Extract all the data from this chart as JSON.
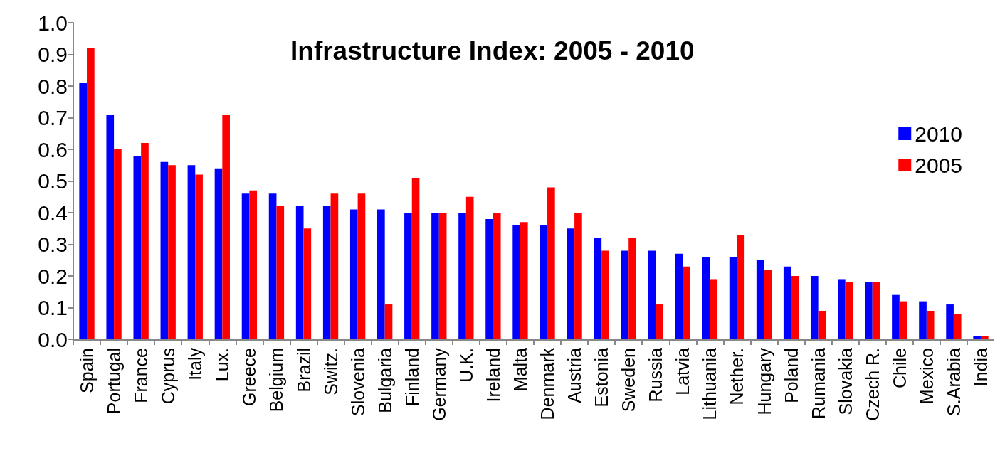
{
  "chart_data": {
    "type": "bar",
    "title": "Infrastructure Index: 2005 - 2010",
    "categories": [
      "Spain",
      "Portugal",
      "France",
      "Cyprus",
      "Italy",
      "Lux.",
      "Greece",
      "Belgium",
      "Brazil",
      "Switz.",
      "Slovenia",
      "Bulgaria",
      "Finland",
      "Germany",
      "U.K.",
      "Ireland",
      "Malta",
      "Denmark",
      "Austria",
      "Estonia",
      "Sweden",
      "Russia",
      "Latvia",
      "Lithuania",
      "Nether.",
      "Hungary",
      "Poland",
      "Rumania",
      "Slovakia",
      "Czech R.",
      "Chile",
      "Mexico",
      "S.Arabia",
      "India"
    ],
    "series": [
      {
        "name": "2010",
        "color": "#0000ff",
        "values": [
          0.81,
          0.71,
          0.58,
          0.56,
          0.55,
          0.54,
          0.46,
          0.46,
          0.42,
          0.42,
          0.41,
          0.41,
          0.4,
          0.4,
          0.4,
          0.38,
          0.36,
          0.36,
          0.35,
          0.32,
          0.28,
          0.28,
          0.27,
          0.26,
          0.26,
          0.25,
          0.23,
          0.2,
          0.19,
          0.18,
          0.14,
          0.12,
          0.11,
          0.01
        ]
      },
      {
        "name": "2005",
        "color": "#ff0000",
        "values": [
          0.92,
          0.6,
          0.62,
          0.55,
          0.52,
          0.71,
          0.47,
          0.42,
          0.35,
          0.46,
          0.46,
          0.11,
          0.51,
          0.4,
          0.45,
          0.4,
          0.37,
          0.48,
          0.4,
          0.28,
          0.32,
          0.11,
          0.23,
          0.19,
          0.33,
          0.22,
          0.2,
          0.09,
          0.18,
          0.18,
          0.12,
          0.09,
          0.08,
          0.01
        ]
      }
    ],
    "ylim": [
      0,
      1
    ],
    "yticks": [
      {
        "value": 0,
        "label": "0.0"
      },
      0.1,
      0.2,
      0.3,
      0.4,
      0.5,
      0.6,
      0.7,
      0.8,
      0.9,
      {
        "value": 1,
        "label": "1.0"
      }
    ],
    "grid": false,
    "legend": "top right"
  }
}
